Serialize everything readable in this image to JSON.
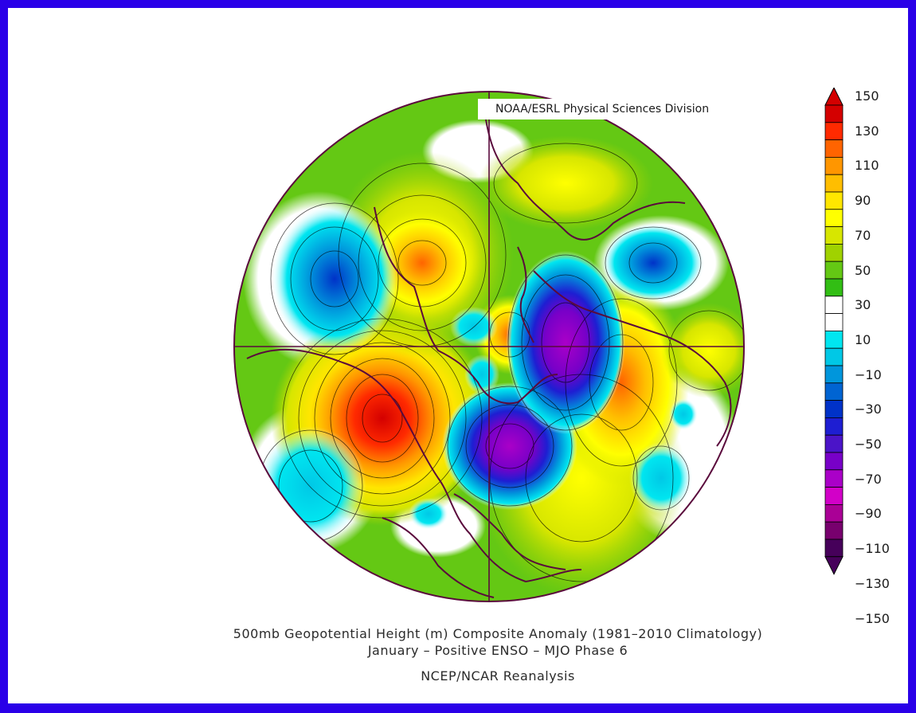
{
  "credit": "NOAA/ESRL Physical Sciences Division",
  "title": {
    "line1": "500mb Geopotential Height (m) Composite Anomaly (1981–2010 Climatology)",
    "line2": "January – Positive ENSO – MJO Phase 6",
    "line3": "NCEP/NCAR Reanalysis"
  },
  "colorbar": {
    "labels": [
      "150",
      "130",
      "110",
      "90",
      "70",
      "50",
      "30",
      "10",
      "−10",
      "−30",
      "−50",
      "−70",
      "−90",
      "−110",
      "−130",
      "−150"
    ],
    "colors": [
      "#d40000",
      "#ff2a00",
      "#ff6400",
      "#ff9600",
      "#ffbe00",
      "#ffe600",
      "#ffff00",
      "#d7e600",
      "#a0d200",
      "#64c814",
      "#32be14",
      "#ffffff",
      "#ffffff",
      "#00e6f0",
      "#00c8e6",
      "#0096dc",
      "#0064d2",
      "#0032c8",
      "#1e1ed2",
      "#4b14c8",
      "#7800c8",
      "#aa00c8",
      "#d200c8",
      "#aa0096",
      "#78006e",
      "#46005a"
    ],
    "arrow_top_color": "#d40000",
    "arrow_bottom_color": "#46005a"
  },
  "anomaly_centers": [
    {
      "value": 145,
      "color": "#d40000"
    },
    {
      "value": 95,
      "color": "#ff9600"
    },
    {
      "value": 85,
      "color": "#ffbe00"
    },
    {
      "value": 60,
      "color": "#ffff00"
    },
    {
      "value": -65,
      "color": "#0064d2"
    },
    {
      "value": -105,
      "color": "#7800c8"
    },
    {
      "value": -115,
      "color": "#aa00c8"
    },
    {
      "value": -45,
      "color": "#0096dc"
    },
    {
      "value": -25,
      "color": "#00c8e6"
    }
  ],
  "map_colors": {
    "background": "#64c814",
    "border": "#2a00e8",
    "coastline": "#5a0a3c",
    "contour": "#000000"
  }
}
